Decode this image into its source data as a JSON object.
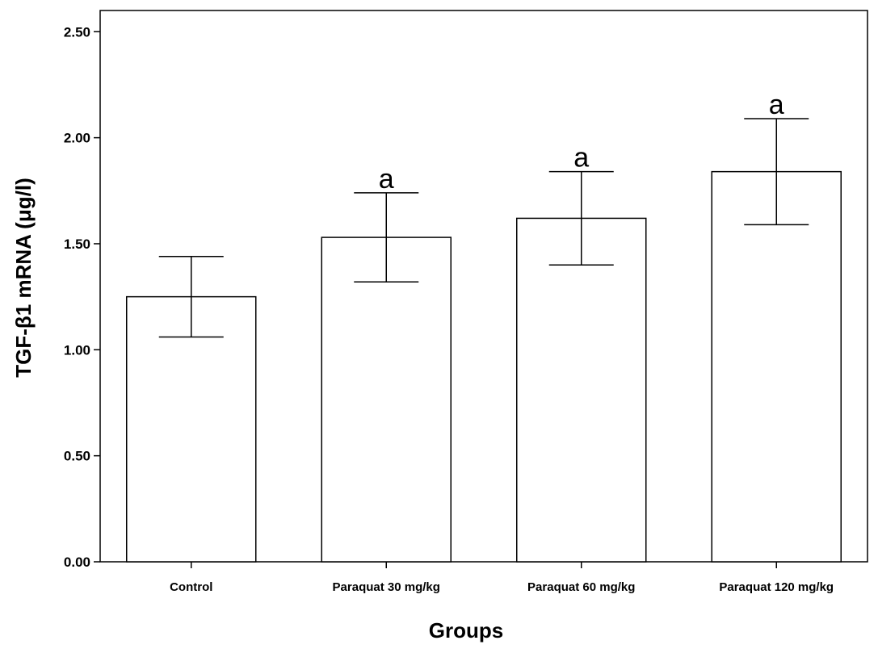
{
  "chart_data": {
    "type": "bar",
    "title": "",
    "xlabel": "Groups",
    "ylabel": "TGF-β1 mRNA (μg/l)",
    "ylim": [
      0,
      2.6
    ],
    "yticks": [
      "0.00",
      "0.50",
      "1.00",
      "1.50",
      "2.00",
      "2.50"
    ],
    "categories": [
      "Control",
      "Paraquat 30 mg/kg",
      "Paraquat 60 mg/kg",
      "Paraquat 120 mg/kg"
    ],
    "values": [
      1.25,
      1.53,
      1.62,
      1.84
    ],
    "error_low": [
      1.06,
      1.32,
      1.4,
      1.59
    ],
    "error_high": [
      1.44,
      1.74,
      1.84,
      2.09
    ],
    "annotations": [
      "",
      "a",
      "a",
      "a"
    ],
    "grid": false,
    "legend": "none"
  }
}
